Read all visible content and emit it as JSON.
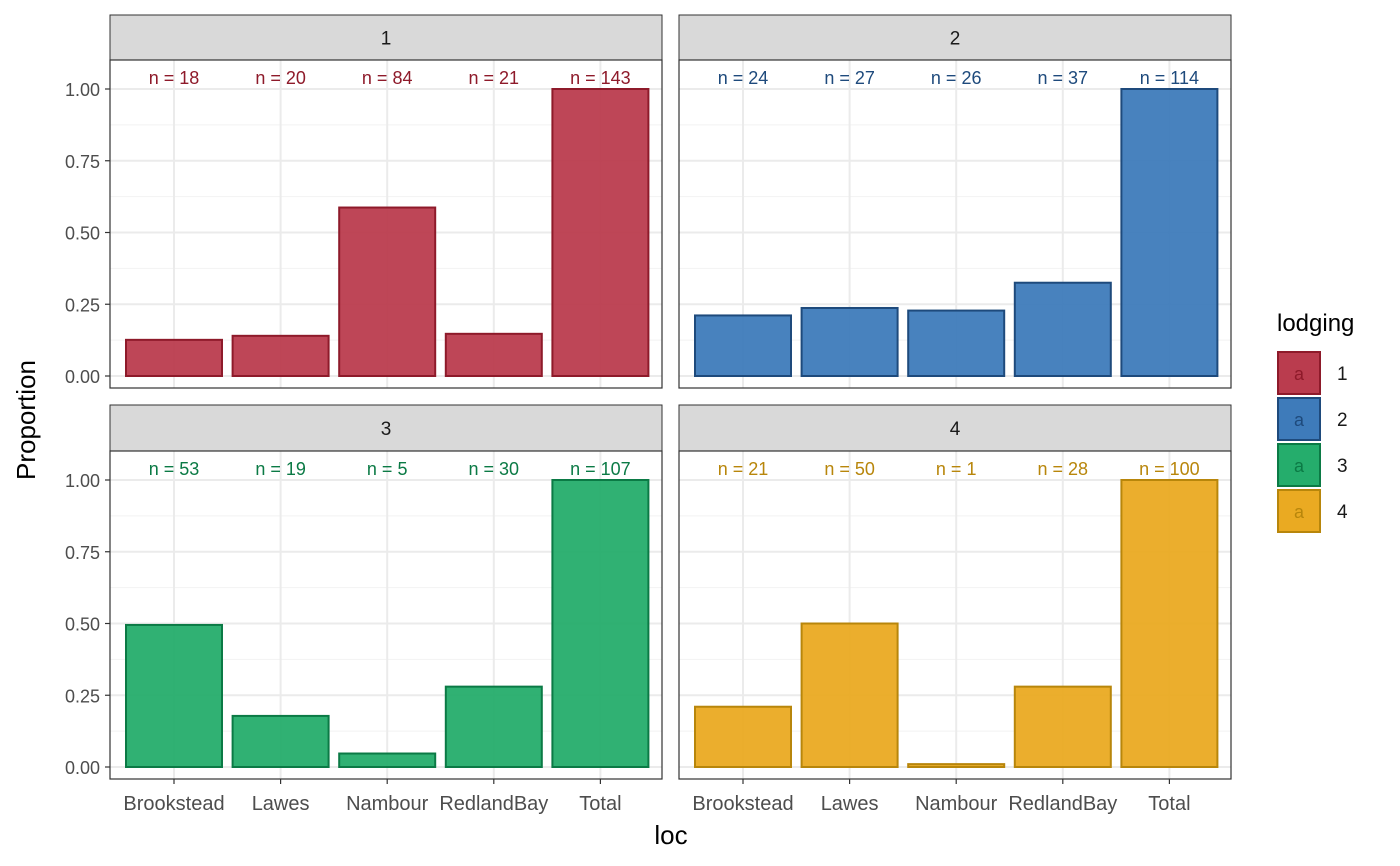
{
  "chart_data": {
    "type": "bar",
    "facet_variable": "lodging",
    "xlabel": "loc",
    "ylabel": "Proportion",
    "ylim": [
      0,
      1.1
    ],
    "yticks": [
      0.0,
      0.25,
      0.5,
      0.75,
      1.0
    ],
    "ytick_labels": [
      "0.00",
      "0.25",
      "0.50",
      "0.75",
      "1.00"
    ],
    "categories": [
      "Brookstead",
      "Lawes",
      "Nambour",
      "RedlandBay",
      "Total"
    ],
    "grid": true,
    "legend": {
      "title": "lodging",
      "position": "right",
      "key_glyph": "a",
      "entries": [
        "1",
        "2",
        "3",
        "4"
      ]
    },
    "facets": [
      {
        "strip": "1",
        "fill": "#BA3C4E",
        "line": "#8E1A2A",
        "values": [
          0.126,
          0.14,
          0.587,
          0.147,
          1.0
        ],
        "labels": [
          "n = 18",
          "n = 20",
          "n = 84",
          "n = 21",
          "n = 143"
        ]
      },
      {
        "strip": "2",
        "fill": "#3E7BBA",
        "line": "#1E4A7C",
        "values": [
          0.211,
          0.237,
          0.228,
          0.325,
          1.0
        ],
        "labels": [
          "n = 24",
          "n = 27",
          "n = 26",
          "n = 37",
          "n = 114"
        ]
      },
      {
        "strip": "3",
        "fill": "#25AD6C",
        "line": "#0B7A45",
        "values": [
          0.495,
          0.178,
          0.047,
          0.28,
          1.0
        ],
        "labels": [
          "n = 53",
          "n = 19",
          "n = 5",
          "n = 30",
          "n = 107"
        ]
      },
      {
        "strip": "4",
        "fill": "#EAAA22",
        "line": "#B8860B",
        "values": [
          0.21,
          0.5,
          0.01,
          0.28,
          1.0
        ],
        "labels": [
          "n = 21",
          "n = 50",
          "n = 1",
          "n = 28",
          "n = 100"
        ]
      }
    ]
  }
}
